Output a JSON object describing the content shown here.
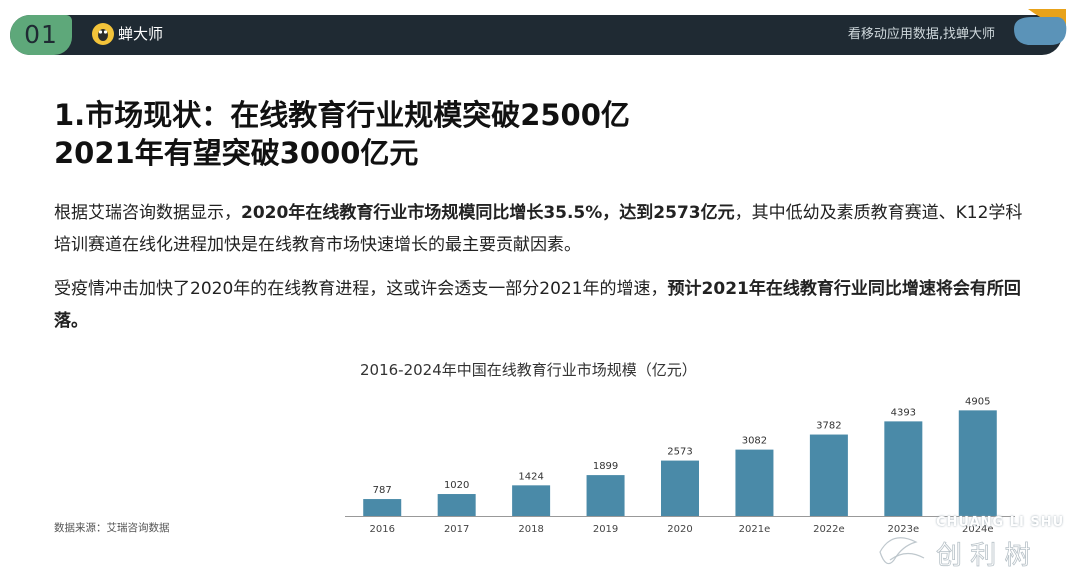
{
  "header": {
    "section_number": "01",
    "brand_name": "蝉大师",
    "slogan": "看移动应用数据,找蝉大师"
  },
  "title": {
    "line1": "1.市场现状：在线教育行业规模突破2500亿",
    "line2": "2021年有望突破3000亿元"
  },
  "paragraph1": {
    "part1": "根据艾瑞咨询数据显示，",
    "bold": "2020年在线教育行业市场规模同比增长35.5%，达到2573亿元",
    "part2": "，其中低幼及素质教育赛道、K12学科培训赛道在线化进程加快是在线教育市场快速增长的最主要贡献因素。"
  },
  "paragraph2": {
    "part1": "受疫情冲击加快了2020年的在线教育进程，这或许会透支一部分2021年的增速，",
    "bold": "预计2021年在线教育行业同比增速将会有所回落。"
  },
  "source": "数据来源：艾瑞咨询数据",
  "watermark": {
    "text": "CHUANG LI SHU",
    "chars": "创 利 树"
  },
  "colors": {
    "header_bg": "#1f2a33",
    "badge": "#5ea87a",
    "bar": "#4a8aa8",
    "accent": "#f4c43a"
  },
  "chart_data": {
    "type": "bar",
    "title": "2016-2024年中国在线教育行业市场规模（亿元）",
    "categories": [
      "2016",
      "2017",
      "2018",
      "2019",
      "2020",
      "2021e",
      "2022e",
      "2023e",
      "2024e"
    ],
    "values": [
      787,
      1020,
      1424,
      1899,
      2573,
      3082,
      3782,
      4393,
      4905
    ],
    "xlabel": "",
    "ylabel": "",
    "ylim": [
      0,
      5200
    ],
    "grid": false,
    "legend": "none"
  }
}
